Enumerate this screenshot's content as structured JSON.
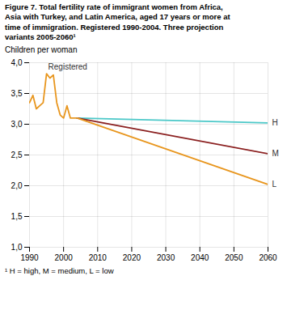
{
  "chart_data": {
    "type": "line",
    "title": "Figure 7. Total fertility rate of immigrant women from Africa,\nAsia with Turkey, and Latin America, aged 17 years or more at\ntime of immigration. Registered 1990-2004. Three projection\nvariants 2005-2060¹",
    "ylabel": "Children per woman",
    "footnote": "¹ H = high, M = medium, L = low",
    "xlim": [
      1990,
      2060
    ],
    "ylim": [
      1.0,
      4.0
    ],
    "xticks": [
      1990,
      2000,
      2010,
      2020,
      2030,
      2040,
      2050,
      2060
    ],
    "yticks": [
      {
        "value": 1.0,
        "label": "1,0"
      },
      {
        "value": 1.5,
        "label": "1,5"
      },
      {
        "value": 2.0,
        "label": "2,0"
      },
      {
        "value": 2.5,
        "label": "2,5"
      },
      {
        "value": 3.0,
        "label": "3,0"
      },
      {
        "value": 3.5,
        "label": "3,5"
      },
      {
        "value": 4.0,
        "label": "4,0"
      }
    ],
    "grid": true,
    "series": [
      {
        "name": "Registered",
        "color": "#E8961E",
        "x": [
          1990,
          1991,
          1992,
          1993,
          1994,
          1995,
          1996,
          1997,
          1998,
          1999,
          2000,
          2001,
          2002,
          2003,
          2004
        ],
        "values": [
          3.35,
          3.47,
          3.25,
          3.3,
          3.35,
          3.82,
          3.75,
          3.8,
          3.35,
          3.15,
          3.1,
          3.3,
          3.1,
          3.1,
          3.1
        ]
      },
      {
        "name": "H",
        "color": "#4BC8C8",
        "x": [
          2004,
          2060
        ],
        "values": [
          3.1,
          3.02
        ]
      },
      {
        "name": "M",
        "color": "#8B2020",
        "x": [
          2004,
          2060
        ],
        "values": [
          3.1,
          2.52
        ]
      },
      {
        "name": "L",
        "color": "#E8961E",
        "x": [
          2004,
          2060
        ],
        "values": [
          3.1,
          2.02
        ]
      }
    ]
  }
}
